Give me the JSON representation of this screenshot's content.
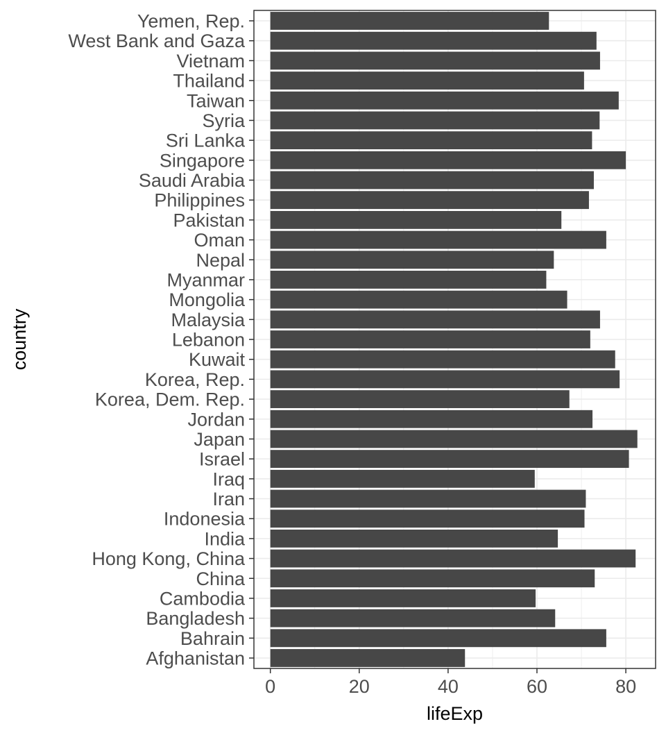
{
  "chart_data": {
    "type": "bar",
    "orientation": "horizontal",
    "categories": [
      "Afghanistan",
      "Bahrain",
      "Bangladesh",
      "Cambodia",
      "China",
      "Hong Kong, China",
      "India",
      "Indonesia",
      "Iran",
      "Iraq",
      "Israel",
      "Japan",
      "Jordan",
      "Korea, Dem. Rep.",
      "Korea, Rep.",
      "Kuwait",
      "Lebanon",
      "Malaysia",
      "Mongolia",
      "Myanmar",
      "Nepal",
      "Oman",
      "Pakistan",
      "Philippines",
      "Saudi Arabia",
      "Singapore",
      "Sri Lanka",
      "Syria",
      "Taiwan",
      "Thailand",
      "Vietnam",
      "West Bank and Gaza",
      "Yemen, Rep."
    ],
    "values": [
      43.8,
      75.6,
      64.1,
      59.7,
      73.0,
      82.2,
      64.7,
      70.7,
      71.0,
      59.5,
      80.7,
      82.6,
      72.5,
      67.3,
      78.6,
      77.6,
      72.0,
      74.2,
      66.8,
      62.1,
      63.8,
      75.6,
      65.5,
      71.7,
      72.8,
      80.0,
      72.4,
      74.1,
      78.4,
      70.6,
      74.2,
      73.4,
      62.7
    ],
    "xlabel": "lifeExp",
    "ylabel": "country",
    "xlim": [
      -3.7,
      86.7
    ],
    "xticks": [
      "0",
      "20",
      "40",
      "60",
      "80"
    ],
    "bar_color": "#474747",
    "grid": true,
    "theme": "bw"
  }
}
